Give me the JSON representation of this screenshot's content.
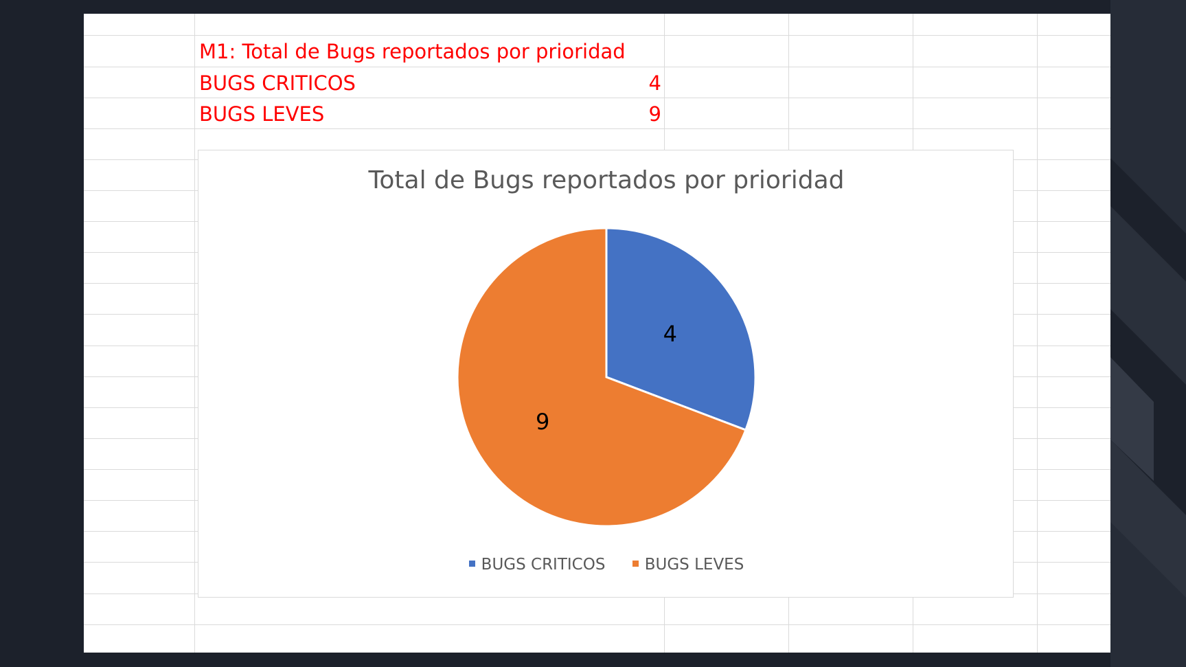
{
  "table": {
    "title": "M1: Total de Bugs reportados por prioridad",
    "rows": [
      {
        "label": "BUGS CRITICOS",
        "value": "4"
      },
      {
        "label": "BUGS LEVES",
        "value": "9"
      }
    ]
  },
  "colors": {
    "accent_text": "#ff0000",
    "series_critical": "#4472c4",
    "series_minor": "#ed7d31",
    "background": "#1c212b"
  },
  "chart_data": {
    "type": "pie",
    "title": "Total de Bugs reportados por prioridad",
    "categories": [
      "BUGS CRITICOS",
      "BUGS LEVES"
    ],
    "values": [
      4,
      9
    ],
    "data_labels": [
      "4",
      "9"
    ],
    "colors": [
      "#4472c4",
      "#ed7d31"
    ],
    "legend": "bottom"
  }
}
